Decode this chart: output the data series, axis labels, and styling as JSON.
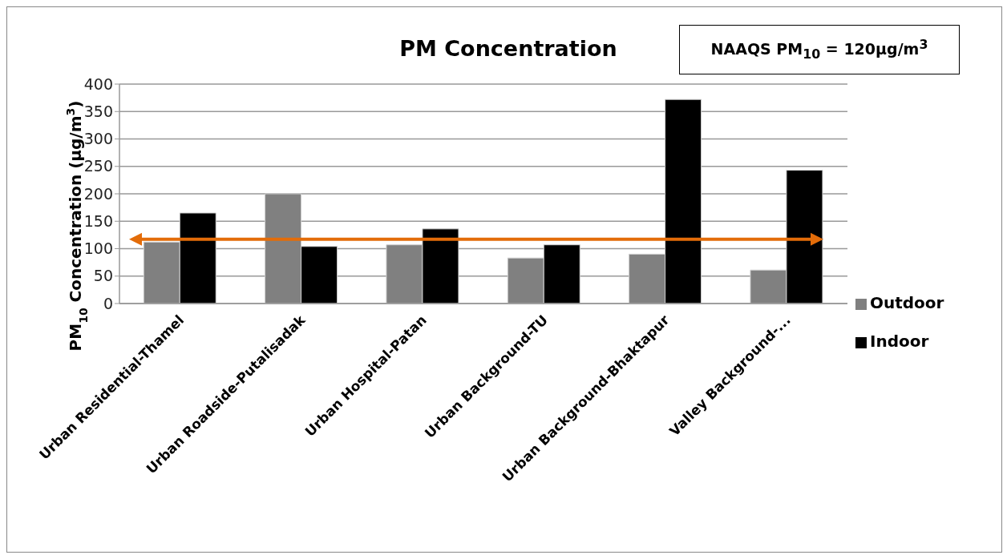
{
  "chart_data": {
    "type": "bar",
    "title": "PM Concentration",
    "ylabel": "PM$_{10}$ Concentration (µg/m$^{3}$)",
    "annotations": [
      "NAAQS PM$_{10}$ = 120µg/m$^{3}$"
    ],
    "categories": [
      "Urban Residential-Thamel",
      "Urban Roadside-Putalisadak",
      "Urban Hospital-Patan",
      "Urban Background-TU",
      "Urban Background-Bhaktapur",
      "Valley Background-..."
    ],
    "series": [
      {
        "name": "Outdoor",
        "color": "#808080",
        "values": [
          112,
          200,
          107,
          83,
          90,
          61
        ]
      },
      {
        "name": "Indoor",
        "color": "#000000",
        "values": [
          165,
          104,
          136,
          107,
          372,
          243
        ]
      }
    ],
    "ylim": [
      0,
      400
    ],
    "yticks": [
      0,
      50,
      100,
      150,
      200,
      250,
      300,
      350,
      400
    ],
    "ref_lines": [
      {
        "axis": "y",
        "value": 117,
        "color": "#e36c09"
      }
    ],
    "grid": "y",
    "legend": "right"
  }
}
